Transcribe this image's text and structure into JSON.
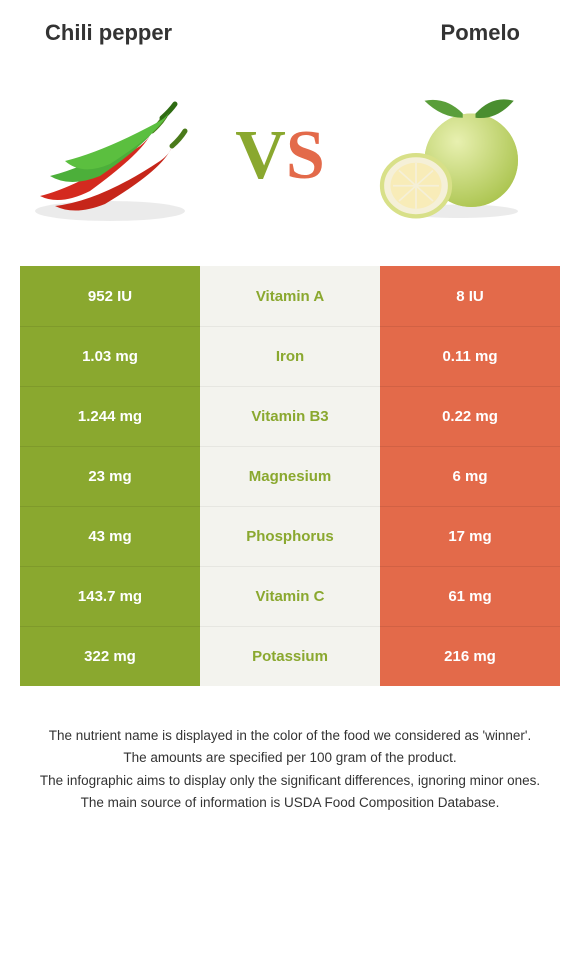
{
  "titles": {
    "left": "Chili pepper",
    "right": "Pomelo"
  },
  "vs": {
    "v": "V",
    "s": "S"
  },
  "colors": {
    "left": "#8aa82f",
    "right": "#e36a4a",
    "mid_bg": "#f3f3ee"
  },
  "rows": [
    {
      "nutrient": "Vitamin A",
      "left": "952 IU",
      "right": "8 IU",
      "winner": "left"
    },
    {
      "nutrient": "Iron",
      "left": "1.03 mg",
      "right": "0.11 mg",
      "winner": "left"
    },
    {
      "nutrient": "Vitamin B3",
      "left": "1.244 mg",
      "right": "0.22 mg",
      "winner": "left"
    },
    {
      "nutrient": "Magnesium",
      "left": "23 mg",
      "right": "6 mg",
      "winner": "left"
    },
    {
      "nutrient": "Phosphorus",
      "left": "43 mg",
      "right": "17 mg",
      "winner": "left"
    },
    {
      "nutrient": "Vitamin C",
      "left": "143.7 mg",
      "right": "61 mg",
      "winner": "left"
    },
    {
      "nutrient": "Potassium",
      "left": "322 mg",
      "right": "216 mg",
      "winner": "left"
    }
  ],
  "footnotes": [
    "The nutrient name is displayed in the color of the food we considered as 'winner'.",
    "The amounts are specified per 100 gram of the product.",
    "The infographic aims to display only the significant differences, ignoring minor ones.",
    "The main source of information is USDA Food Composition Database."
  ]
}
